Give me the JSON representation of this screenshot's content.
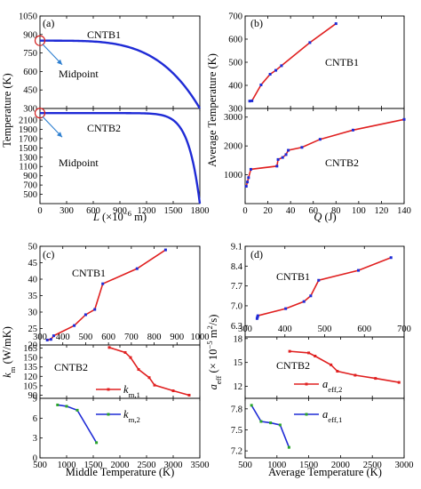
{
  "chart_data": [
    {
      "type": "line",
      "panel_label": "(a)",
      "xlabel": "L (×10⁻⁶ m)",
      "ylabel": "Temperature (K)",
      "xlim": [
        0,
        1800
      ],
      "xticks": [
        "0",
        "300",
        "600",
        "900",
        "1200",
        "1500",
        "1800"
      ],
      "subplots": [
        {
          "name": "CNTB1",
          "ylim": [
            300,
            1050
          ],
          "yticks": [
            300,
            450,
            600,
            750,
            900,
            1050
          ],
          "ytick_labels": [
            "300",
            "450",
            "600",
            "750",
            "900",
            "1050"
          ],
          "curve": {
            "color": "#1f2bd6",
            "T_mid": 850,
            "T_end": 300,
            "exponent": 4
          },
          "marker": {
            "x": 0,
            "y": 850,
            "label": "Midpoint"
          }
        },
        {
          "name": "CNTB2",
          "ylim": [
            300,
            2350
          ],
          "yticks": [
            500,
            700,
            900,
            1100,
            1300,
            1500,
            1700,
            1900,
            2100
          ],
          "ytick_labels": [
            "500",
            "700",
            "900",
            "1100",
            "1300",
            "1500",
            "1700",
            "1900",
            "2100"
          ],
          "curve": {
            "color": "#1f2bd6",
            "T_mid": 2250,
            "T_end": 300,
            "exponent": 14
          },
          "marker": {
            "x": 0,
            "y": 2250,
            "label": "Midpoint"
          }
        }
      ]
    },
    {
      "type": "line",
      "panel_label": "(b)",
      "xlabel": "Q (J)",
      "ylabel": "Average Temperature (K)",
      "xlim": [
        0,
        140
      ],
      "xticks": [
        "0",
        "20",
        "40",
        "60",
        "80",
        "100",
        "120",
        "140"
      ],
      "subplots": [
        {
          "name": "CNTB1",
          "ylim": [
            300,
            700
          ],
          "yticks": [
            300,
            400,
            500,
            600,
            700
          ],
          "ytick_labels": [
            "300",
            "400",
            "500",
            "600",
            "700"
          ],
          "series": [
            {
              "line_color": "#e02020",
              "marker_color": "#1f2bd6",
              "x": [
                4,
                6,
                14,
                22,
                27,
                32,
                57,
                80
              ],
              "y": [
                332,
                333,
                402,
                448,
                465,
                485,
                585,
                667
              ]
            }
          ]
        },
        {
          "name": "CNTB2",
          "ylim": [
            0,
            3300
          ],
          "yticks": [
            1000,
            2000,
            3000
          ],
          "ytick_labels": [
            "1000",
            "2000",
            "3000"
          ],
          "series": [
            {
              "line_color": "#e02020",
              "marker_color": "#1f2bd6",
              "x": [
                1,
                2,
                3,
                5,
                28,
                29,
                33,
                36,
                38,
                50,
                66,
                95,
                140
              ],
              "y": [
                600,
                750,
                900,
                1190,
                1300,
                1530,
                1600,
                1700,
                1850,
                1950,
                2230,
                2550,
                2920
              ]
            }
          ]
        }
      ]
    },
    {
      "type": "line",
      "panel_label": "(c)",
      "xlabel": "Middle  Temperature (K)",
      "ylabel": "k_m (W/mK)",
      "subplots": [
        {
          "name": "CNTB1",
          "xlim": [
            300,
            1000
          ],
          "xticks": [
            300,
            400,
            500,
            600,
            700,
            800,
            900,
            1000
          ],
          "xtick_labels": [
            "300",
            "400",
            "500",
            "600",
            "700",
            "800",
            "900",
            "1000"
          ],
          "ylim": [
            20,
            50
          ],
          "yticks": [
            20,
            25,
            30,
            35,
            40,
            45,
            50
          ],
          "ytick_labels": [
            "20",
            "25",
            "30",
            "35",
            "40",
            "45",
            "50"
          ],
          "series": [
            {
              "line_color": "#e02020",
              "marker_color": "#1f2bd6",
              "x": [
                332,
                348,
                360,
                450,
                500,
                540,
                575,
                725,
                850
              ],
              "y": [
                21.5,
                21.7,
                22.8,
                25.9,
                29.2,
                30.8,
                38.6,
                43.2,
                48.9
              ]
            }
          ]
        },
        {
          "name": "CNTB2",
          "xlim": [
            500,
            3500
          ],
          "ylim": [
            85,
            170
          ],
          "yticks": [
            90,
            105,
            120,
            135,
            150,
            165
          ],
          "ytick_labels": [
            "90",
            "105",
            "120",
            "135",
            "150",
            "165"
          ],
          "series": [
            {
              "name": "k_m,1",
              "line_color": "#e02020",
              "marker_color": "#e02020",
              "x": [
                1800,
                2100,
                2200,
                2350,
                2550,
                2650,
                3000,
                3300
              ],
              "y": [
                166,
                158,
                150,
                131,
                118,
                106,
                97,
                90
              ]
            }
          ]
        },
        {
          "xlim": [
            500,
            3500
          ],
          "xticks": [
            500,
            1000,
            1500,
            2000,
            2500,
            3000,
            3500
          ],
          "xtick_labels": [
            "500",
            "1000",
            "1500",
            "2000",
            "2500",
            "3000",
            "3500"
          ],
          "ylim": [
            0,
            9
          ],
          "yticks": [
            0,
            3,
            6,
            9
          ],
          "ytick_labels": [
            "0",
            "3",
            "6",
            "9"
          ],
          "series": [
            {
              "name": "k_m,2",
              "line_color": "#1f2bd6",
              "marker_color": "#2aa52a",
              "x": [
                830,
                1000,
                1200,
                1560
              ],
              "y": [
                8.0,
                7.8,
                7.2,
                2.3
              ]
            }
          ]
        }
      ]
    },
    {
      "type": "line",
      "panel_label": "(d)",
      "xlabel": "Average Temperature (K)",
      "ylabel": "a_eff (×10⁻⁵ m²/s)",
      "subplots": [
        {
          "name": "CNTB1",
          "xlim": [
            300,
            700
          ],
          "xticks": [
            300,
            400,
            500,
            600,
            700
          ],
          "xtick_labels": [
            "300",
            "400",
            "500",
            "600",
            "700"
          ],
          "ylim": [
            5.9,
            9.1
          ],
          "yticks": [
            6.3,
            7.0,
            7.7,
            8.4,
            9.1
          ],
          "ytick_labels": [
            "6.3",
            "7.0",
            "7.7",
            "8.4",
            "9.1"
          ],
          "series": [
            {
              "line_color": "#e02020",
              "marker_color": "#1f2bd6",
              "x": [
                330,
                331,
                332,
                402,
                448,
                465,
                485,
                585,
                667
              ],
              "y": [
                6.55,
                6.6,
                6.65,
                6.9,
                7.15,
                7.35,
                7.9,
                8.25,
                8.7
              ]
            }
          ]
        },
        {
          "name": "CNTB2",
          "xlim": [
            500,
            3000
          ],
          "ylim": [
            10.5,
            18.2
          ],
          "yticks": [
            12,
            15,
            18
          ],
          "ytick_labels": [
            "12",
            "15",
            "18"
          ],
          "series": [
            {
              "name": "a_eff,2",
              "line_color": "#e02020",
              "marker_color": "#e02020",
              "x": [
                1200,
                1500,
                1600,
                1850,
                1950,
                2230,
                2550,
                2920
              ],
              "y": [
                16.4,
                16.2,
                15.8,
                14.7,
                13.9,
                13.4,
                13.0,
                12.5
              ]
            }
          ]
        },
        {
          "xlim": [
            500,
            3000
          ],
          "xticks": [
            500,
            1000,
            1500,
            2000,
            2500,
            3000
          ],
          "xtick_labels": [
            "500",
            "1000",
            "1500",
            "2000",
            "2500",
            "3000"
          ],
          "ylim": [
            7.1,
            7.95
          ],
          "yticks": [
            7.2,
            7.5,
            7.8
          ],
          "ytick_labels": [
            "7.2",
            "7.5",
            "7.8"
          ],
          "series": [
            {
              "name": "a_eff,1",
              "line_color": "#1f2bd6",
              "marker_color": "#2aa52a",
              "x": [
                600,
                750,
                900,
                1050,
                1190
              ],
              "y": [
                7.85,
                7.62,
                7.6,
                7.57,
                7.25
              ]
            }
          ]
        }
      ]
    }
  ]
}
